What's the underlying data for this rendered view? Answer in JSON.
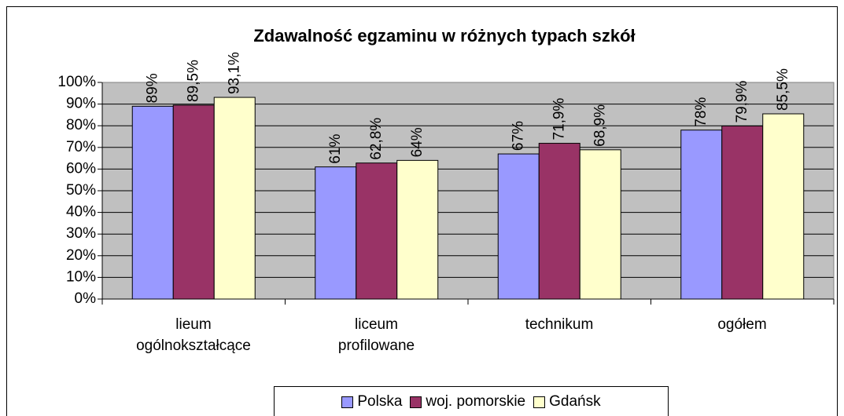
{
  "chart_data": {
    "type": "bar",
    "title": "Zdawalność egzaminu w różnych typach szkół",
    "categories": [
      "lieum\nogólnokształcące",
      "liceum\nprofilowane",
      "technikum",
      "ogółem"
    ],
    "series": [
      {
        "name": "Polska",
        "color": "#9999ff",
        "values": [
          89,
          61,
          67,
          78
        ],
        "value_labels": [
          "89%",
          "61%",
          "67%",
          "78%"
        ]
      },
      {
        "name": "woj. pomorskie",
        "color": "#993366",
        "values": [
          89.5,
          62.8,
          71.9,
          79.9
        ],
        "value_labels": [
          "89,5%",
          "62,8%",
          "71,9%",
          "79,9%"
        ]
      },
      {
        "name": "Gdańsk",
        "color": "#ffffcc",
        "values": [
          93.1,
          64,
          68.9,
          85.5
        ],
        "value_labels": [
          "93,1%",
          "64%",
          "68,9%",
          "85,5%"
        ]
      }
    ],
    "ylim": [
      0,
      100
    ],
    "yticks": [
      {
        "value": 0,
        "label": "0%"
      },
      {
        "value": 10,
        "label": "10%"
      },
      {
        "value": 20,
        "label": "20%"
      },
      {
        "value": 30,
        "label": "30%"
      },
      {
        "value": 40,
        "label": "40%"
      },
      {
        "value": 50,
        "label": "50%"
      },
      {
        "value": 60,
        "label": "60%"
      },
      {
        "value": 70,
        "label": "70%"
      },
      {
        "value": 80,
        "label": "80%"
      },
      {
        "value": 90,
        "label": "90%"
      },
      {
        "value": 100,
        "label": "100%"
      }
    ],
    "grid": true,
    "legend": "bottom",
    "plot_background": "#c0c0c0"
  }
}
